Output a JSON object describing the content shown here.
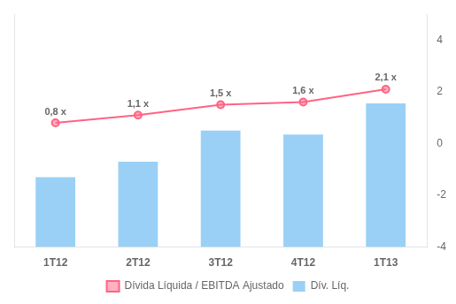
{
  "chart_data": {
    "type": "bar",
    "categories": [
      "1T12",
      "2T12",
      "3T12",
      "4T12",
      "1T13"
    ],
    "series": [
      {
        "name": "Dív. Líq.",
        "type": "bar",
        "values": [
          900,
          1100,
          1500,
          1450,
          1850
        ]
      },
      {
        "name": "Dívida Líquida / EBITDA Ajustado",
        "type": "line",
        "axis": "y2",
        "marker": "circle",
        "values": [
          0.8,
          1.1,
          1.5,
          1.6,
          2.1
        ],
        "value_labels": [
          "0,8 x",
          "1,1 x",
          "1,5 x",
          "1,6 x",
          "2,1 x"
        ],
        "data_labels": true
      }
    ],
    "ylim": [
      0,
      3000
    ],
    "y2lim": [
      -4,
      5
    ],
    "y2ticks": [
      4,
      2,
      0,
      -2,
      -4
    ],
    "grid": false,
    "legend": "bottom"
  }
}
